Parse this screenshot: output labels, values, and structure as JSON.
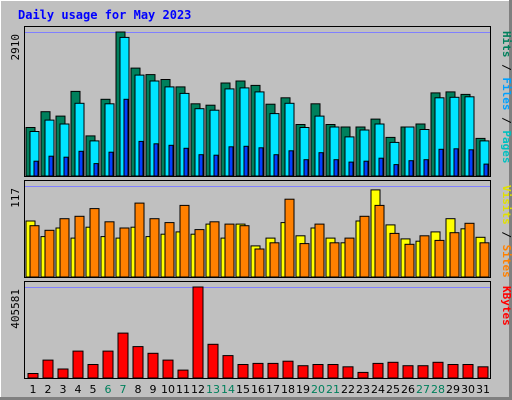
{
  "chart_data": {
    "type": "bar",
    "title": "Daily usage for May 2023",
    "colors": {
      "hits": "#00805c",
      "files": "#00e4ff",
      "pages": "#0040ff",
      "visits": "#ffff00",
      "sites": "#ff8000",
      "kbytes": "#ff0000",
      "panel": "#c0c0c0",
      "title": "#0000ff",
      "weekend_label": "#00805c",
      "weekday_label": "#000000"
    },
    "days": [
      "1",
      "2",
      "3",
      "4",
      "5",
      "6",
      "7",
      "8",
      "9",
      "10",
      "11",
      "12",
      "13",
      "14",
      "15",
      "16",
      "17",
      "18",
      "19",
      "20",
      "21",
      "22",
      "23",
      "24",
      "25",
      "26",
      "27",
      "28",
      "29",
      "30",
      "31"
    ],
    "weekend_days": [
      "6",
      "7",
      "13",
      "14",
      "20",
      "21",
      "27",
      "28"
    ],
    "panels": [
      {
        "id": "traffic",
        "ymax_label": "2910",
        "ymax": 2910,
        "legend": [
          {
            "text": "Pages",
            "color": "#00c0c0"
          },
          {
            "text": " / ",
            "color": "#000000"
          },
          {
            "text": "Files",
            "color": "#00a0ff"
          },
          {
            "text": " / ",
            "color": "#000000"
          },
          {
            "text": "Hits",
            "color": "#00805c"
          }
        ],
        "series": [
          {
            "name": "Hits",
            "values": [
              980,
              1300,
              1210,
              1710,
              810,
              1550,
              2910,
              2180,
              2050,
              1950,
              1800,
              1460,
              1430,
              1880,
              1920,
              1830,
              1450,
              1580,
              1040,
              1460,
              1040,
              990,
              990,
              1150,
              780,
              990,
              1050,
              1680,
              1700,
              1650,
              760
            ]
          },
          {
            "name": "Files",
            "values": [
              900,
              1130,
              1050,
              1470,
              710,
              1460,
              2800,
              2040,
              1920,
              1800,
              1670,
              1360,
              1330,
              1760,
              1780,
              1700,
              1260,
              1470,
              980,
              1210,
              990,
              790,
              930,
              1050,
              680,
              990,
              940,
              1580,
              1590,
              1600,
              710
            ]
          },
          {
            "name": "Pages",
            "values": [
              300,
              400,
              380,
              500,
              250,
              480,
              1550,
              700,
              650,
              620,
              560,
              430,
              420,
              590,
              600,
              570,
              430,
              510,
              330,
              470,
              330,
              280,
              300,
              360,
              230,
              310,
              330,
              540,
              550,
              530,
              240
            ]
          }
        ]
      },
      {
        "id": "visits",
        "ymax_label": "117",
        "ymax": 117,
        "legend": [
          {
            "text": "Sites",
            "color": "#ff8000"
          },
          {
            "text": " / ",
            "color": "#000000"
          },
          {
            "text": "Visits",
            "color": "#e0e000"
          }
        ],
        "series": [
          {
            "name": "Visits",
            "values": [
              72,
              52,
              63,
              50,
              64,
              52,
              50,
              64,
              52,
              55,
              58,
              55,
              68,
              50,
              68,
              40,
              50,
              70,
              53,
              63,
              50,
              44,
              72,
              112,
              67,
              49,
              46,
              58,
              75,
              62,
              51
            ]
          },
          {
            "name": "Sites",
            "values": [
              66,
              60,
              75,
              78,
              88,
              71,
              63,
              95,
              75,
              70,
              92,
              61,
              71,
              68,
              66,
              36,
              44,
              100,
              43,
              68,
              44,
              50,
              78,
              92,
              56,
              42,
              53,
              47,
              57,
              69,
              44
            ]
          }
        ]
      },
      {
        "id": "kbytes",
        "ymax_label": "405581",
        "ymax": 405581,
        "legend": [
          {
            "text": "KBytes",
            "color": "#ff0000"
          }
        ],
        "series": [
          {
            "name": "KBytes",
            "values": [
              20000,
              80000,
              40000,
              120000,
              60000,
              120000,
              200000,
              140000,
              110000,
              80000,
              35000,
              405581,
              150000,
              100000,
              60000,
              65000,
              65000,
              75000,
              55000,
              60000,
              60000,
              50000,
              25000,
              65000,
              70000,
              55000,
              55000,
              70000,
              60000,
              60000,
              50000
            ]
          }
        ]
      }
    ]
  }
}
